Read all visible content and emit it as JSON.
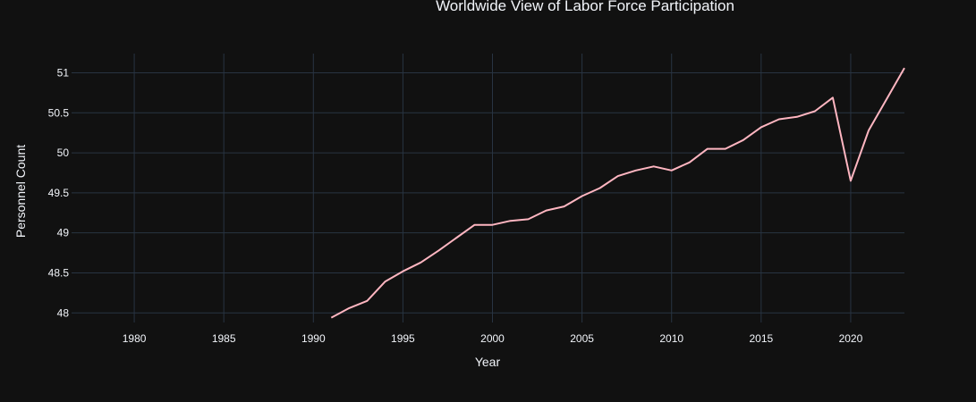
{
  "chart_data": {
    "type": "line",
    "title": "Worldwide View of Labor Force Participation",
    "xlabel": "Year",
    "ylabel": "Personnel Count",
    "xlim": [
      1976.5,
      2023
    ],
    "ylim": [
      47.88,
      51.24
    ],
    "x_ticks": [
      1980,
      1985,
      1990,
      1995,
      2000,
      2005,
      2010,
      2015,
      2020
    ],
    "x_tick_labels": [
      "1980",
      "1985",
      "1990",
      "1995",
      "2000",
      "2005",
      "2010",
      "2015",
      "2020"
    ],
    "y_ticks": [
      48,
      48.5,
      49,
      49.5,
      50,
      50.5,
      51
    ],
    "y_tick_labels": [
      "48",
      "48.5",
      "49",
      "49.5",
      "50",
      "50.5",
      "51"
    ],
    "grid": true,
    "series": [
      {
        "color": "#ffb6c1",
        "x": [
          1991,
          1992,
          1993,
          1994,
          1995,
          1996,
          1997,
          1998,
          1999,
          2000,
          2001,
          2002,
          2003,
          2004,
          2005,
          2006,
          2007,
          2008,
          2009,
          2010,
          2011,
          2012,
          2013,
          2014,
          2015,
          2016,
          2017,
          2018,
          2019,
          2020,
          2021,
          2022,
          2023
        ],
        "y": [
          47.94,
          48.06,
          48.15,
          48.39,
          48.52,
          48.63,
          48.78,
          48.94,
          49.1,
          49.1,
          49.15,
          49.17,
          49.28,
          49.33,
          49.46,
          49.56,
          49.71,
          49.78,
          49.83,
          49.78,
          49.88,
          50.05,
          50.05,
          50.16,
          50.32,
          50.42,
          50.45,
          50.52,
          50.69,
          49.65,
          50.28,
          50.67,
          51.06
        ]
      }
    ]
  },
  "colors": {
    "background": "#111111",
    "grid": "#283442",
    "text": "#f2f5fa",
    "line": "#ffb6c1"
  }
}
